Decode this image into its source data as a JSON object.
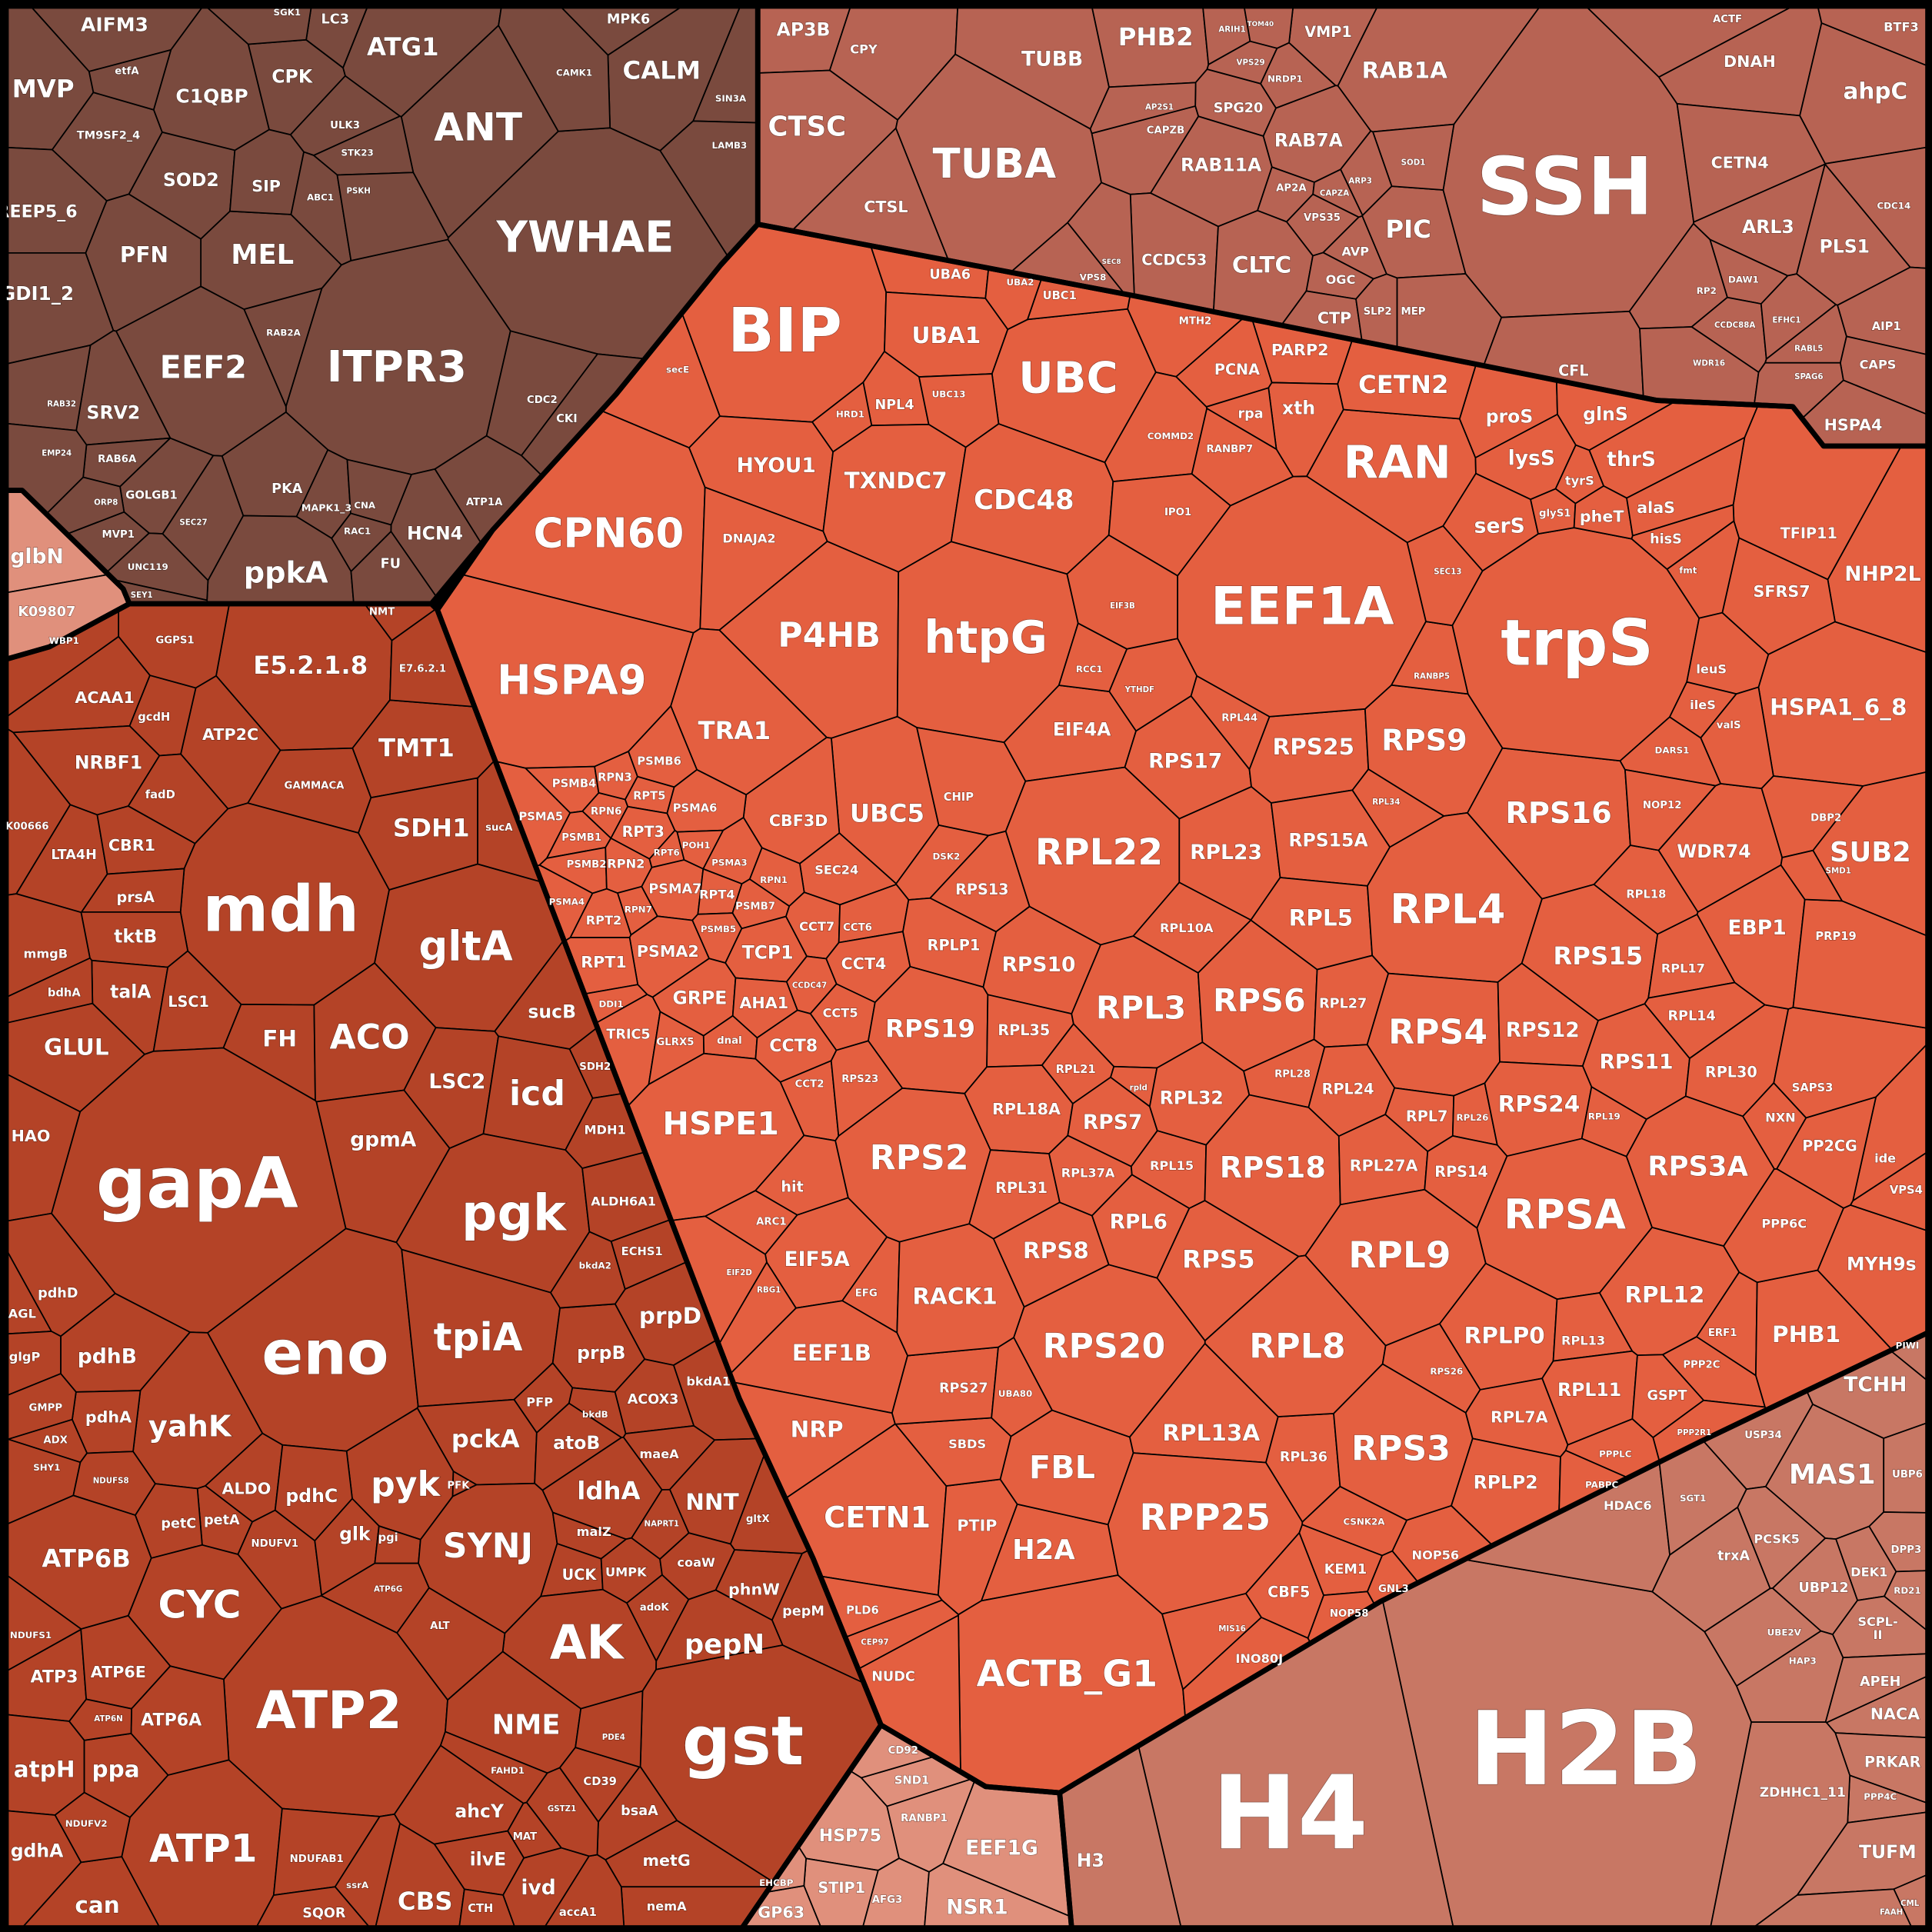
{
  "chart_data": {
    "type": "treemap",
    "layout": "voronoi",
    "title": "",
    "groups": [
      {
        "color": "#7a4a3e",
        "cells": [
          "AIFM3",
          "MVP",
          "C1QBP",
          "ATG1",
          "ANT",
          "CALM",
          "YWHAE",
          "ITPR3",
          "EEF2",
          "MEL",
          "PFN",
          "SOD2",
          "SIP",
          "CPK",
          "REEP5_6",
          "GDI1_2",
          "TM9SF2_4",
          "SRV2",
          "PKA",
          "ppkA",
          "HCN4",
          "FU",
          "GOLGB1",
          "MVP1",
          "RAB6A",
          "UNC119",
          "ATP1A",
          "CDC2",
          "CKI",
          "LC3",
          "MPK6",
          "etfA",
          "ULK3",
          "STK23",
          "SIN3A",
          "LAMB3",
          "CAMK1",
          "RAB2A",
          "MAPK1_3",
          "CNA",
          "RAC1",
          "SEY1",
          "ORP8",
          "RAB32",
          "EMP24",
          "SEC27",
          "ABC1",
          "PSKH",
          "SGK1"
        ]
      },
      {
        "color": "#e0907c",
        "cells": [
          "glbN",
          "K09807"
        ]
      },
      {
        "color": "#b44327",
        "cells": [
          "E5.2.1.8",
          "ATP2C",
          "TMT1",
          "GAMMACA",
          "E7.6.2.1",
          "NMT",
          "ACAA1",
          "gcdH",
          "NRBF1",
          "fadD",
          "K00666",
          "LTA4H",
          "CBR1",
          "mdh",
          "SDH1",
          "sucA",
          "gltA",
          "prsA",
          "tktB",
          "talA",
          "mmgB",
          "bdhA",
          "LSC1",
          "FH",
          "ACO",
          "sucB",
          "LSC2",
          "icd",
          "GLUL",
          "SDH2",
          "MDH1",
          "gapA",
          "gpmA",
          "pgk",
          "HAO",
          "ALDH6A1",
          "ECHS1",
          "eno",
          "tpiA",
          "prpD",
          "pdhD",
          "pdhB",
          "prpB",
          "bkdA2",
          "bkdA1",
          "ACOX3",
          "PFP",
          "bkdB",
          "yahK",
          "pdhA",
          "pckA",
          "atoB",
          "maeA",
          "AGL",
          "glgP",
          "GMPP",
          "ADX",
          "SHY1",
          "ldhA",
          "NNT",
          "pyk",
          "PFK",
          "ALDO",
          "pdhC",
          "petA",
          "petC",
          "NDUFV1",
          "NDUFS8",
          "glk",
          "pgi",
          "SYNJ",
          "malZ",
          "UCK",
          "UMPK",
          "coaW",
          "phnW",
          "pepM",
          "gltX",
          "NAPRT1",
          "adoK",
          "ATP6B",
          "CYC",
          "NDUFS1",
          "ATP3",
          "ATP6E",
          "ATP2",
          "ATP6A",
          "AK",
          "pepN",
          "gst",
          "NME",
          "atpH",
          "ppa",
          "ATP1",
          "NDUFAB1",
          "ATP6N",
          "ahcY",
          "ilvE",
          "ivd",
          "CD39",
          "bsaA",
          "metG",
          "nemA",
          "accA1",
          "CBS",
          "CTH",
          "SQOR",
          "gdhA",
          "can",
          "ssrA",
          "ALT",
          "FAHD1",
          "MAT",
          "GSTZ1",
          "PDE4",
          "ATP6G",
          "NDUFV2",
          "GGPS1",
          "WBP1"
        ]
      },
      {
        "color": "#e45f40",
        "cells": [
          "BIP",
          "UBA6",
          "UBA1",
          "UBC",
          "UBC1",
          "UBA2",
          "NPL4",
          "UBC13",
          "HRD1",
          "secE",
          "CPN60",
          "HYOU1",
          "TXNDC7",
          "CDC48",
          "DNAJA2",
          "P4HB",
          "htpG",
          "HSPA9",
          "TRA1",
          "UBC5",
          "CBF3D",
          "CHIP",
          "SEC24",
          "DSK2",
          "PSMB6",
          "PSMB4",
          "RPN3",
          "PSMA5",
          "RPN6",
          "RPT5",
          "PSMA6",
          "PSMB1",
          "RPT3",
          "POH1",
          "PSMB2",
          "RPN2",
          "RPT6",
          "PSMA3",
          "PSMA4",
          "RPN7",
          "PSMA7",
          "RPT4",
          "PSMB7",
          "RPN1",
          "RPT2",
          "PSMB5",
          "PSMA2",
          "TCP1",
          "CCT7",
          "CCT6",
          "CCT4",
          "RPT1",
          "CCDC47",
          "GRPE",
          "AHA1",
          "CCT5",
          "DDI1",
          "TRIC5",
          "GLRX5",
          "dnal",
          "CCT8",
          "CCT2",
          "HSPE1",
          "hit",
          "ARC1",
          "EIF5A",
          "EFG",
          "EEF1B",
          "EIF2D",
          "NRP",
          "RBG1",
          "CETN1",
          "PTIP",
          "H2A",
          "ACTB_G1",
          "PLD6",
          "NUDC",
          "CEP97",
          "FBL",
          "SBDS",
          "RPS27",
          "UBA80",
          "EIF4A",
          "RPS13",
          "RPLP1",
          "RPS19",
          "RPS10",
          "RPL35",
          "RPS23",
          "RPS2",
          "RPL18A",
          "RPL31",
          "RPS8",
          "RACK1",
          "RPS20",
          "RPL13A",
          "RPP25",
          "RPL36",
          "CBF5",
          "KEM1",
          "NOP58",
          "NOP56",
          "CSNK2A",
          "GNL3",
          "MIS16",
          "INO80J",
          "RPS17",
          "RPS25",
          "RPS9",
          "RPL44",
          "RPL22",
          "RPL23",
          "RPS15A",
          "RPL10A",
          "RPL5",
          "RPL4",
          "RPS16",
          "RPL34",
          "RPL3",
          "RPS6",
          "RPL27",
          "RPS4",
          "RPS12",
          "RPS15",
          "RPL17",
          "RPL18",
          "RPL14",
          "RPS11",
          "RPL30",
          "RPL21",
          "RPS7",
          "rpld",
          "RPL32",
          "RPL28",
          "RPL24",
          "RPL7",
          "RPL26",
          "RPS24",
          "RPL19",
          "RPL37A",
          "RPL15",
          "RPS18",
          "RPL27A",
          "RPS14",
          "RPS3A",
          "RPSA",
          "RPL6",
          "RPS5",
          "RPL9",
          "RPL12",
          "RPLP0",
          "RPL13",
          "RPL8",
          "RPS26",
          "RPL11",
          "RPS3",
          "RPL7A",
          "RPLP2",
          "GSPT",
          "PPP2C",
          "ERF1",
          "PPP2R1",
          "PPPLC",
          "PABPC",
          "PHB1",
          "MYH9s",
          "PPP6C",
          "VPS4",
          "ide",
          "PP2CG",
          "NXN",
          "SAPS3",
          "HSPA1_6_8",
          "SUB2",
          "WDR74",
          "NHP2L",
          "EBP1",
          "PRP19",
          "TFIP11",
          "SFRS7",
          "RAN",
          "EEF1A",
          "trpS",
          "proS",
          "glnS",
          "lysS",
          "thrS",
          "tyrS",
          "serS",
          "glyS1",
          "pheT",
          "alaS",
          "hisS",
          "fmt",
          "leuS",
          "ileS",
          "valS",
          "DARS1",
          "NOP12",
          "DBP2",
          "SMD1",
          "CETN2",
          "PARP2",
          "PCNA",
          "xth",
          "rpa",
          "MTH2",
          "COMMD2",
          "RANBP7",
          "IPO1",
          "RCC1",
          "YTHDF",
          "EIF3B",
          "RANBP5",
          "SEC13"
        ]
      },
      {
        "color": "#b76353",
        "cells": [
          "AP3B",
          "CPY",
          "CTSC",
          "TUBA",
          "TUBB",
          "CTSL",
          "PHB2",
          "VMP1",
          "RAB1A",
          "SPG20",
          "RAB7A",
          "RAB11A",
          "CAPZB",
          "AP2S1",
          "AP2A",
          "VPS35",
          "AVP",
          "CCDC53",
          "CLTC",
          "PIC",
          "OGC",
          "CTP",
          "SLP2",
          "MEP",
          "SSH",
          "CFL",
          "DNAH",
          "ACTF",
          "ahpC",
          "BTF3",
          "CETN4",
          "ARL3",
          "PLS1",
          "CDC14",
          "DAW1",
          "RP2",
          "AIP1",
          "CAPS",
          "HSPA4",
          "CCDC88A",
          "WDR16",
          "EFHC1",
          "RABL5",
          "SPAG6",
          "SOD1",
          "ARP3",
          "CAPZA",
          "VPS8",
          "SEC8",
          "NRDP1",
          "ARIH1",
          "TOM40",
          "VPS29"
        ]
      },
      {
        "color": "#e0907c",
        "cells": [
          "HSP75",
          "SND1",
          "RANBP1",
          "EEF1G",
          "CD92",
          "STIP1",
          "AFG3",
          "GP63",
          "NSR1",
          "EHCBP"
        ]
      },
      {
        "color": "#c87764",
        "cells": [
          "H2B",
          "H4",
          "H3",
          "MAS1",
          "TCHH",
          "PIWI",
          "UBP6",
          "USP34",
          "PCSK5",
          "DEK1",
          "DPP3",
          "trxA",
          "UBP12",
          "SCPL-II",
          "RD21",
          "APEH",
          "NACA",
          "PRKAR",
          "PPP4C",
          "ZDHHC1_11",
          "TUFM",
          "HAP3",
          "UBE2V",
          "HDAC6",
          "SGT1",
          "CML",
          "FAAH"
        ]
      }
    ]
  }
}
